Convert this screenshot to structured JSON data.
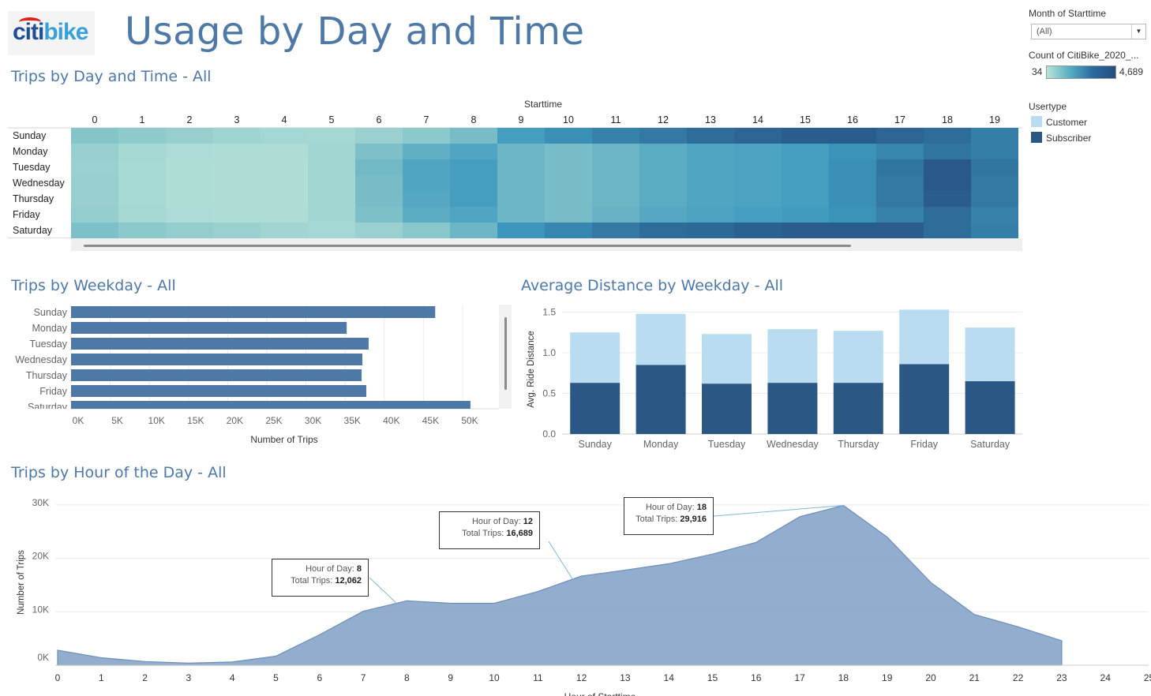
{
  "header": {
    "logo_text_citi": "citi",
    "logo_text_bike": "bike",
    "title": "Usage by Day and Time"
  },
  "filters": {
    "month_label": "Month of Starttime",
    "month_value": "(All)",
    "count_label": "Count of CitiBike_2020_...",
    "count_min": "34",
    "count_max": "4,689",
    "usertype_label": "Usertype",
    "usertype_items": [
      {
        "label": "Customer",
        "color": "#b9dcf0"
      },
      {
        "label": "Subscriber",
        "color": "#2b5784"
      }
    ]
  },
  "sections": {
    "heatmap_title": "Trips by Day and Time - All",
    "weekday_title": "Trips by Weekday - All",
    "distance_title": "Average Distance by Weekday - All",
    "hour_title": "Trips by Hour of the Day - All"
  },
  "chart_data": [
    {
      "type": "heatmap",
      "title": "Trips by Day and Time - All",
      "xlabel": "Starttime",
      "x": [
        0,
        1,
        2,
        3,
        4,
        5,
        6,
        7,
        8,
        9,
        10,
        11,
        12,
        13,
        14,
        15,
        16,
        17,
        18,
        19
      ],
      "rows": [
        "Sunday",
        "Monday",
        "Tuesday",
        "Wednesday",
        "Thursday",
        "Friday",
        "Saturday"
      ],
      "color_range": [
        34,
        4689
      ],
      "values": [
        [
          1500,
          1200,
          1000,
          800,
          650,
          600,
          900,
          1300,
          1800,
          2700,
          3100,
          3400,
          3600,
          3900,
          4100,
          4300,
          4300,
          4100,
          3900,
          3500
        ],
        [
          1000,
          600,
          400,
          350,
          350,
          700,
          1700,
          2200,
          2500,
          2000,
          1800,
          2000,
          2300,
          2500,
          2600,
          2700,
          3000,
          3300,
          3700,
          3500
        ],
        [
          900,
          500,
          350,
          300,
          300,
          700,
          1900,
          2500,
          2700,
          2000,
          1800,
          2000,
          2300,
          2500,
          2600,
          2700,
          3100,
          3700,
          4400,
          3700
        ],
        [
          1000,
          500,
          350,
          300,
          300,
          700,
          1800,
          2500,
          2700,
          2000,
          1800,
          2000,
          2300,
          2500,
          2600,
          2700,
          3100,
          3600,
          4400,
          3600
        ],
        [
          1000,
          500,
          350,
          300,
          300,
          700,
          1800,
          2400,
          2700,
          2000,
          1800,
          2000,
          2300,
          2500,
          2600,
          2700,
          3100,
          3600,
          4300,
          3600
        ],
        [
          1100,
          600,
          400,
          350,
          350,
          700,
          1700,
          2300,
          2500,
          2000,
          1800,
          2100,
          2400,
          2600,
          2700,
          2800,
          3000,
          3400,
          3900,
          3400
        ],
        [
          1700,
          1300,
          1100,
          900,
          750,
          650,
          900,
          1400,
          2000,
          2900,
          3300,
          3600,
          3900,
          4000,
          4200,
          4300,
          4300,
          4300,
          3900,
          3500
        ]
      ]
    },
    {
      "type": "bar",
      "orientation": "horizontal",
      "title": "Trips by Weekday - All",
      "categories": [
        "Sunday",
        "Monday",
        "Tuesday",
        "Wednesday",
        "Thursday",
        "Friday",
        "Saturday"
      ],
      "values": [
        46500,
        35200,
        38000,
        37200,
        37100,
        37700,
        51000
      ],
      "xlabel": "Number of Trips",
      "xticks": [
        "0K",
        "5K",
        "10K",
        "15K",
        "20K",
        "25K",
        "30K",
        "35K",
        "40K",
        "45K",
        "50K"
      ],
      "xlim": [
        0,
        55000
      ],
      "color": "#4e79a7"
    },
    {
      "type": "bar",
      "stacked": true,
      "title": "Average Distance by Weekday - All",
      "categories": [
        "Sunday",
        "Monday",
        "Tuesday",
        "Wednesday",
        "Thursday",
        "Friday",
        "Saturday"
      ],
      "series": [
        {
          "name": "Subscriber",
          "values": [
            0.63,
            0.85,
            0.62,
            0.63,
            0.63,
            0.86,
            0.65
          ]
        },
        {
          "name": "Customer",
          "values": [
            0.62,
            0.63,
            0.61,
            0.66,
            0.64,
            0.67,
            0.66
          ]
        }
      ],
      "ylabel": "Avg. Ride Distance",
      "yticks": [
        "0.0",
        "0.5",
        "1.0",
        "1.5"
      ],
      "ylim": [
        0,
        1.55
      ]
    },
    {
      "type": "area",
      "title": "Trips by Hour of the Day - All",
      "x": [
        0,
        1,
        2,
        3,
        4,
        5,
        6,
        7,
        8,
        9,
        10,
        11,
        12,
        13,
        14,
        15,
        16,
        17,
        18,
        19,
        20,
        21,
        22,
        23
      ],
      "values": [
        2800,
        1400,
        700,
        400,
        600,
        1700,
        5700,
        10100,
        12062,
        11600,
        11600,
        13800,
        16689,
        17800,
        19000,
        20800,
        23000,
        27800,
        29916,
        24000,
        15500,
        9500,
        7200,
        4600
      ],
      "ylabel": "Number of Trips",
      "xlabel": "Hour of Starttime",
      "yticks": [
        "0K",
        "10K",
        "20K",
        "30K"
      ],
      "xticks": [
        "0",
        "1",
        "2",
        "3",
        "4",
        "5",
        "6",
        "7",
        "8",
        "9",
        "10",
        "11",
        "12",
        "13",
        "14",
        "15",
        "16",
        "17",
        "18",
        "19",
        "20",
        "21",
        "22",
        "23",
        "24",
        "25"
      ],
      "color": "#7f9fc6",
      "annotations": [
        {
          "hour_label": "Hour of Day:",
          "hour": "8",
          "trips_label": "Total Trips:",
          "trips": "12,062"
        },
        {
          "hour_label": "Hour of Day:",
          "hour": "12",
          "trips_label": "Total Trips:",
          "trips": "16,689"
        },
        {
          "hour_label": "Hour of Day:",
          "hour": "18",
          "trips_label": "Total Trips:",
          "trips": "29,916"
        }
      ]
    }
  ]
}
